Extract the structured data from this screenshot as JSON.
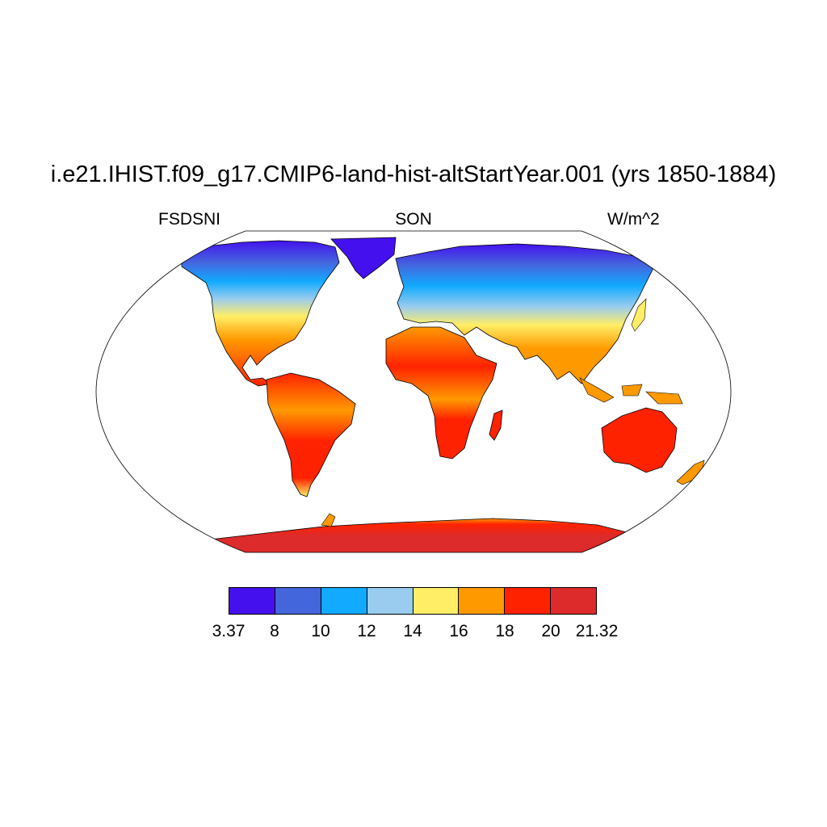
{
  "title": "i.e21.IHIST.f09_g17.CMIP6-land-hist-altStartYear.001 (yrs 1850-1884)",
  "variable": "FSDSNI",
  "season": "SON",
  "units": "W/m^2",
  "colorbar": {
    "colors": [
      "#4411ee",
      "#4466dd",
      "#11aaff",
      "#99ccee",
      "#ffee66",
      "#ff9900",
      "#ff2200",
      "#dd2a2a"
    ],
    "labels": [
      "3.37",
      "8",
      "10",
      "12",
      "14",
      "16",
      "18",
      "20",
      "21.32"
    ]
  },
  "ocean_color": "#ffffff",
  "coastline_color": "#000000"
}
